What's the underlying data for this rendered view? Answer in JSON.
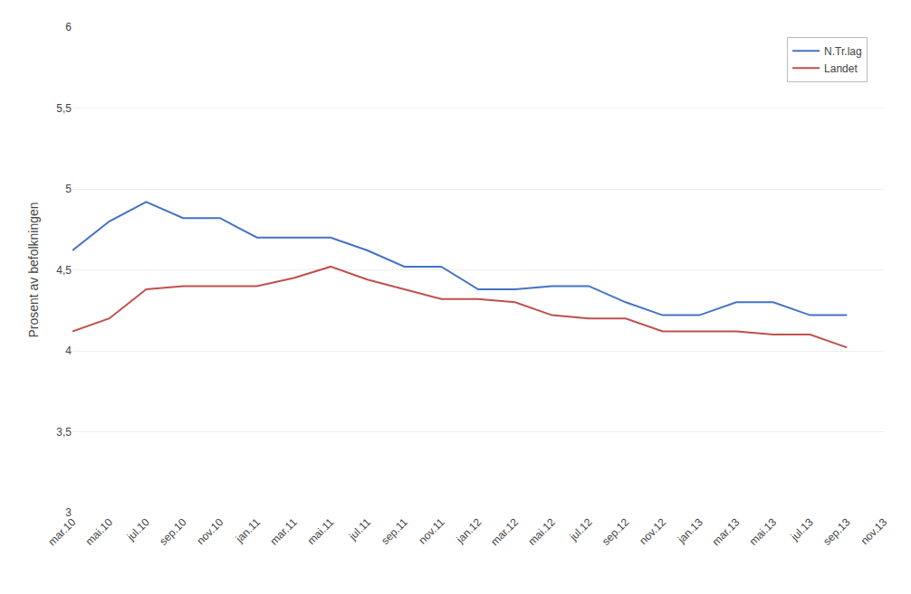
{
  "chart_data": {
    "type": "line",
    "categories": [
      "mar.10",
      "mai.10",
      "jul.10",
      "sep.10",
      "nov.10",
      "jan.11",
      "mar.11",
      "mai.11",
      "jul.11",
      "sep.11",
      "nov.11",
      "jan.12",
      "mar.12",
      "mai.12",
      "jul.12",
      "sep.12",
      "nov.12",
      "jan.13",
      "mar.13",
      "mai.13",
      "jul.13",
      "sep.13",
      "nov.13"
    ],
    "series": [
      {
        "name": "N.Tr.lag",
        "color": "#4472C4",
        "values": [
          4.62,
          4.8,
          4.92,
          4.82,
          4.82,
          4.7,
          4.7,
          4.7,
          4.62,
          4.52,
          4.52,
          4.38,
          4.38,
          4.4,
          4.4,
          4.3,
          4.22,
          4.22,
          4.3,
          4.3,
          4.22,
          4.22,
          null
        ]
      },
      {
        "name": "Landet",
        "color": "#C0504D",
        "values": [
          4.12,
          4.2,
          4.38,
          4.4,
          4.4,
          4.4,
          4.45,
          4.52,
          4.44,
          4.38,
          4.32,
          4.32,
          4.3,
          4.22,
          4.2,
          4.2,
          4.12,
          4.12,
          4.12,
          4.1,
          4.1,
          4.02,
          null
        ]
      }
    ],
    "y_label": "Prosent av befolkningen",
    "ylim": [
      3.0,
      6.0
    ],
    "yticks": [
      3,
      {
        "value": 3.5,
        "label": "3,5"
      },
      4,
      {
        "value": 4.5,
        "label": "4,5"
      },
      5,
      {
        "value": 5.5,
        "label": "5,5"
      },
      6
    ],
    "grid": true,
    "legend": "upper right"
  }
}
